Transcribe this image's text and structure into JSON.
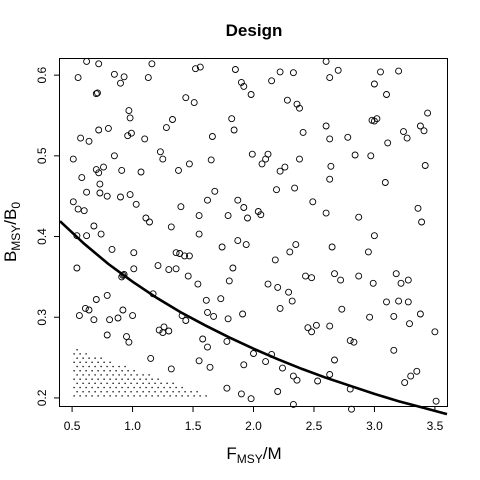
{
  "chart_data": {
    "type": "scatter",
    "title": "Design",
    "xlabel": {
      "main": "F",
      "sub": "MSY",
      "rest": "/M"
    },
    "ylabel": {
      "main": "B",
      "sub": "MSY",
      "mid": "/B",
      "sub2": "0"
    },
    "xlim": [
      0.4,
      3.6
    ],
    "ylim": [
      0.19,
      0.62
    ],
    "x_ticks": [
      0.5,
      1.0,
      1.5,
      2.0,
      2.5,
      3.0,
      3.5
    ],
    "x_tick_labels": [
      "0.5",
      "1.0",
      "1.5",
      "2.0",
      "2.5",
      "3.0",
      "3.5"
    ],
    "y_ticks": [
      0.2,
      0.3,
      0.4,
      0.5,
      0.6
    ],
    "y_tick_labels": [
      "0.2",
      "0.3",
      "0.4",
      "0.5",
      "0.6"
    ],
    "boundary_curve": {
      "x": [
        0.4,
        0.6,
        0.8,
        1.0,
        1.2,
        1.4,
        1.6,
        1.8,
        2.0,
        2.2,
        2.4,
        2.6,
        2.8,
        3.0,
        3.2,
        3.4,
        3.6
      ],
      "y": [
        0.419,
        0.391,
        0.366,
        0.344,
        0.324,
        0.306,
        0.29,
        0.275,
        0.261,
        0.248,
        0.236,
        0.225,
        0.215,
        0.205,
        0.196,
        0.188,
        0.18
      ]
    },
    "stipple_region": {
      "description_free": true,
      "x_range": [
        0.5,
        1.7
      ],
      "y_range": [
        0.2,
        0.26
      ],
      "hypotenuse": [
        [
          0.5,
          0.262
        ],
        [
          1.7,
          0.2
        ]
      ]
    },
    "points": [
      [
        0.55,
        0.597
      ],
      [
        0.62,
        0.617
      ],
      [
        0.72,
        0.614
      ],
      [
        0.85,
        0.601
      ],
      [
        0.9,
        0.59
      ],
      [
        0.93,
        0.598
      ],
      [
        1.13,
        0.597
      ],
      [
        1.16,
        0.614
      ],
      [
        1.52,
        0.608
      ],
      [
        1.56,
        0.61
      ],
      [
        1.85,
        0.607
      ],
      [
        1.9,
        0.591
      ],
      [
        2.15,
        0.593
      ],
      [
        2.22,
        0.604
      ],
      [
        2.33,
        0.603
      ],
      [
        2.6,
        0.617
      ],
      [
        2.63,
        0.597
      ],
      [
        2.7,
        0.606
      ],
      [
        3.0,
        0.589
      ],
      [
        3.05,
        0.604
      ],
      [
        3.2,
        0.605
      ],
      [
        3.1,
        0.576
      ],
      [
        0.7,
        0.577
      ],
      [
        0.71,
        0.578
      ],
      [
        0.97,
        0.556
      ],
      [
        0.98,
        0.547
      ],
      [
        1.44,
        0.572
      ],
      [
        1.51,
        0.566
      ],
      [
        1.92,
        0.586
      ],
      [
        1.98,
        0.576
      ],
      [
        2.28,
        0.569
      ],
      [
        2.36,
        0.564
      ],
      [
        2.38,
        0.559
      ],
      [
        3.02,
        0.546
      ],
      [
        3.0,
        0.543
      ],
      [
        2.98,
        0.544
      ],
      [
        3.44,
        0.553
      ],
      [
        3.38,
        0.537
      ],
      [
        3.41,
        0.531
      ],
      [
        0.57,
        0.522
      ],
      [
        0.64,
        0.518
      ],
      [
        0.72,
        0.532
      ],
      [
        0.8,
        0.534
      ],
      [
        0.96,
        0.525
      ],
      [
        0.99,
        0.528
      ],
      [
        1.1,
        0.521
      ],
      [
        1.28,
        0.535
      ],
      [
        1.33,
        0.545
      ],
      [
        1.66,
        0.524
      ],
      [
        1.82,
        0.546
      ],
      [
        1.84,
        0.532
      ],
      [
        2.41,
        0.529
      ],
      [
        2.6,
        0.537
      ],
      [
        2.63,
        0.521
      ],
      [
        2.78,
        0.523
      ],
      [
        3.11,
        0.516
      ],
      [
        3.24,
        0.53
      ],
      [
        3.27,
        0.522
      ],
      [
        0.51,
        0.496
      ],
      [
        0.58,
        0.473
      ],
      [
        0.62,
        0.455
      ],
      [
        0.7,
        0.483
      ],
      [
        0.72,
        0.479
      ],
      [
        0.76,
        0.486
      ],
      [
        0.85,
        0.5
      ],
      [
        0.91,
        0.482
      ],
      [
        1.07,
        0.48
      ],
      [
        1.23,
        0.505
      ],
      [
        1.25,
        0.496
      ],
      [
        1.38,
        0.482
      ],
      [
        1.47,
        0.49
      ],
      [
        1.65,
        0.495
      ],
      [
        1.99,
        0.502
      ],
      [
        2.07,
        0.49
      ],
      [
        2.1,
        0.496
      ],
      [
        2.12,
        0.502
      ],
      [
        2.22,
        0.481
      ],
      [
        2.26,
        0.486
      ],
      [
        2.38,
        0.496
      ],
      [
        2.63,
        0.471
      ],
      [
        2.64,
        0.487
      ],
      [
        2.84,
        0.501
      ],
      [
        2.97,
        0.5
      ],
      [
        3.09,
        0.467
      ],
      [
        3.42,
        0.488
      ],
      [
        0.51,
        0.443
      ],
      [
        0.55,
        0.434
      ],
      [
        0.6,
        0.432
      ],
      [
        0.73,
        0.465
      ],
      [
        0.73,
        0.454
      ],
      [
        0.79,
        0.45
      ],
      [
        0.9,
        0.449
      ],
      [
        0.98,
        0.452
      ],
      [
        1.03,
        0.44
      ],
      [
        1.4,
        0.437
      ],
      [
        1.55,
        0.426
      ],
      [
        1.62,
        0.445
      ],
      [
        1.68,
        0.456
      ],
      [
        1.79,
        0.426
      ],
      [
        1.87,
        0.445
      ],
      [
        1.92,
        0.436
      ],
      [
        1.95,
        0.423
      ],
      [
        2.04,
        0.431
      ],
      [
        2.06,
        0.427
      ],
      [
        2.19,
        0.458
      ],
      [
        2.34,
        0.46
      ],
      [
        2.49,
        0.443
      ],
      [
        2.6,
        0.429
      ],
      [
        2.87,
        0.424
      ],
      [
        3.36,
        0.435
      ],
      [
        3.39,
        0.418
      ],
      [
        0.54,
        0.401
      ],
      [
        0.62,
        0.401
      ],
      [
        0.68,
        0.413
      ],
      [
        0.74,
        0.403
      ],
      [
        0.83,
        0.384
      ],
      [
        0.92,
        0.352
      ],
      [
        1.01,
        0.38
      ],
      [
        1.11,
        0.423
      ],
      [
        1.14,
        0.418
      ],
      [
        1.32,
        0.412
      ],
      [
        1.36,
        0.38
      ],
      [
        1.39,
        0.379
      ],
      [
        1.43,
        0.376
      ],
      [
        1.47,
        0.376
      ],
      [
        1.55,
        0.403
      ],
      [
        1.74,
        0.387
      ],
      [
        1.87,
        0.395
      ],
      [
        1.94,
        0.39
      ],
      [
        2.18,
        0.371
      ],
      [
        2.3,
        0.381
      ],
      [
        2.35,
        0.39
      ],
      [
        2.65,
        0.387
      ],
      [
        2.95,
        0.381
      ],
      [
        3.0,
        0.401
      ],
      [
        0.54,
        0.361
      ],
      [
        0.61,
        0.311
      ],
      [
        0.64,
        0.309
      ],
      [
        0.7,
        0.322
      ],
      [
        0.79,
        0.327
      ],
      [
        0.91,
        0.35
      ],
      [
        0.93,
        0.353
      ],
      [
        1.01,
        0.36
      ],
      [
        1.17,
        0.329
      ],
      [
        1.21,
        0.364
      ],
      [
        1.3,
        0.359
      ],
      [
        1.36,
        0.36
      ],
      [
        1.46,
        0.351
      ],
      [
        1.54,
        0.341
      ],
      [
        1.61,
        0.321
      ],
      [
        1.73,
        0.323
      ],
      [
        1.8,
        0.345
      ],
      [
        1.83,
        0.361
      ],
      [
        2.12,
        0.341
      ],
      [
        2.2,
        0.337
      ],
      [
        2.29,
        0.331
      ],
      [
        2.32,
        0.32
      ],
      [
        2.43,
        0.351
      ],
      [
        2.48,
        0.349
      ],
      [
        2.67,
        0.354
      ],
      [
        2.72,
        0.346
      ],
      [
        2.87,
        0.351
      ],
      [
        2.99,
        0.342
      ],
      [
        3.18,
        0.354
      ],
      [
        3.22,
        0.342
      ],
      [
        3.28,
        0.346
      ],
      [
        3.1,
        0.319
      ],
      [
        3.2,
        0.32
      ],
      [
        3.28,
        0.319
      ],
      [
        0.56,
        0.302
      ],
      [
        0.68,
        0.297
      ],
      [
        0.81,
        0.297
      ],
      [
        0.88,
        0.299
      ],
      [
        0.92,
        0.309
      ],
      [
        1.0,
        0.302
      ],
      [
        1.26,
        0.288
      ],
      [
        1.3,
        0.283
      ],
      [
        1.41,
        0.302
      ],
      [
        1.44,
        0.296
      ],
      [
        1.62,
        0.306
      ],
      [
        1.67,
        0.301
      ],
      [
        1.79,
        0.298
      ],
      [
        1.91,
        0.304
      ],
      [
        2.22,
        0.311
      ],
      [
        2.52,
        0.29
      ],
      [
        2.63,
        0.289
      ],
      [
        2.73,
        0.31
      ],
      [
        2.96,
        0.3
      ],
      [
        3.16,
        0.301
      ],
      [
        3.29,
        0.292
      ],
      [
        3.38,
        0.304
      ],
      [
        3.5,
        0.282
      ],
      [
        0.79,
        0.278
      ],
      [
        0.95,
        0.276
      ],
      [
        0.97,
        0.269
      ],
      [
        1.22,
        0.284
      ],
      [
        1.25,
        0.281
      ],
      [
        1.58,
        0.273
      ],
      [
        1.62,
        0.263
      ],
      [
        1.78,
        0.27
      ],
      [
        2.0,
        0.255
      ],
      [
        2.15,
        0.254
      ],
      [
        2.45,
        0.287
      ],
      [
        2.48,
        0.282
      ],
      [
        2.8,
        0.271
      ],
      [
        2.83,
        0.269
      ],
      [
        3.16,
        0.259
      ],
      [
        1.15,
        0.249
      ],
      [
        1.32,
        0.236
      ],
      [
        1.55,
        0.246
      ],
      [
        1.64,
        0.238
      ],
      [
        1.92,
        0.241
      ],
      [
        2.1,
        0.245
      ],
      [
        2.24,
        0.237
      ],
      [
        2.33,
        0.227
      ],
      [
        2.53,
        0.221
      ],
      [
        2.63,
        0.229
      ],
      [
        2.67,
        0.247
      ],
      [
        3.3,
        0.227
      ],
      [
        3.35,
        0.233
      ],
      [
        1.78,
        0.212
      ],
      [
        1.9,
        0.205
      ],
      [
        1.98,
        0.199
      ],
      [
        2.2,
        0.208
      ],
      [
        2.36,
        0.222
      ],
      [
        2.8,
        0.211
      ],
      [
        3.25,
        0.219
      ],
      [
        3.51,
        0.196
      ],
      [
        2.33,
        0.192
      ],
      [
        2.81,
        0.186
      ]
    ]
  }
}
